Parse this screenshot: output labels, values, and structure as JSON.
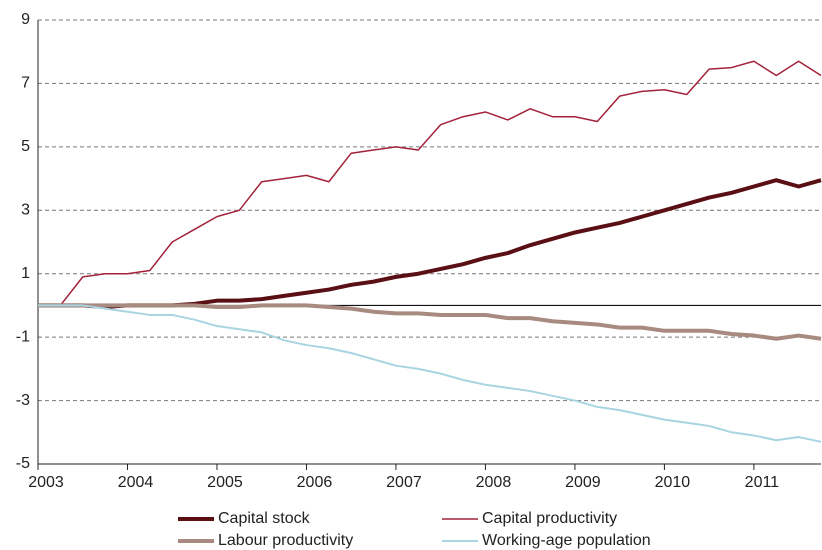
{
  "chart_data": {
    "type": "line",
    "x": [
      2003,
      2003.25,
      2003.5,
      2003.75,
      2004,
      2004.25,
      2004.5,
      2004.75,
      2005,
      2005.25,
      2005.5,
      2005.75,
      2006,
      2006.25,
      2006.5,
      2006.75,
      2007,
      2007.25,
      2007.5,
      2007.75,
      2008,
      2008.25,
      2008.5,
      2008.75,
      2009,
      2009.25,
      2009.5,
      2009.75,
      2010,
      2010.25,
      2010.5,
      2010.75,
      2011,
      2011.25,
      2011.5,
      2011.75
    ],
    "xlim": [
      2003,
      2011.75
    ],
    "xticks": [
      2003,
      2004,
      2005,
      2006,
      2007,
      2008,
      2009,
      2010,
      2011
    ],
    "ylim": [
      -5,
      9
    ],
    "yticks": [
      -5,
      -3,
      -1,
      1,
      3,
      5,
      7,
      9
    ],
    "grid": true,
    "legend": "bottom",
    "series": [
      {
        "name": "Capital stock",
        "color": "#5a0f14",
        "width": 4,
        "values": [
          0,
          0,
          0,
          -0.05,
          0,
          0,
          0,
          0.05,
          0.15,
          0.15,
          0.2,
          0.3,
          0.4,
          0.5,
          0.65,
          0.75,
          0.9,
          1.0,
          1.15,
          1.3,
          1.5,
          1.65,
          1.9,
          2.1,
          2.3,
          2.45,
          2.6,
          2.8,
          3.0,
          3.2,
          3.4,
          3.55,
          3.75,
          3.95,
          3.75,
          3.95
        ]
      },
      {
        "name": "Capital productivity",
        "color": "#a3223a",
        "width": 1.5,
        "values": [
          0,
          0,
          0.9,
          1.0,
          1.0,
          1.1,
          2.0,
          2.4,
          2.8,
          3.0,
          3.9,
          4.0,
          4.1,
          3.9,
          4.8,
          4.9,
          5.0,
          4.9,
          5.7,
          5.95,
          6.1,
          5.85,
          6.2,
          5.95,
          5.95,
          5.8,
          6.6,
          6.75,
          6.8,
          6.65,
          7.45,
          7.5,
          7.7,
          7.25,
          7.7,
          7.25
        ]
      },
      {
        "name": "Labour productivity",
        "color": "#a88a80",
        "width": 4,
        "values": [
          0,
          0,
          0,
          0,
          0,
          0,
          0,
          0,
          -0.05,
          -0.05,
          0,
          0,
          0,
          -0.05,
          -0.1,
          -0.2,
          -0.25,
          -0.25,
          -0.3,
          -0.3,
          -0.3,
          -0.4,
          -0.4,
          -0.5,
          -0.55,
          -0.6,
          -0.7,
          -0.7,
          -0.8,
          -0.8,
          -0.8,
          -0.9,
          -0.95,
          -1.05,
          -0.95,
          -1.05
        ]
      },
      {
        "name": "Working-age population",
        "color": "#a9d4e2",
        "width": 2,
        "values": [
          0,
          0,
          0,
          -0.1,
          -0.2,
          -0.3,
          -0.3,
          -0.45,
          -0.65,
          -0.75,
          -0.85,
          -1.1,
          -1.25,
          -1.35,
          -1.5,
          -1.7,
          -1.9,
          -2.0,
          -2.15,
          -2.35,
          -2.5,
          -2.6,
          -2.7,
          -2.85,
          -3.0,
          -3.2,
          -3.3,
          -3.45,
          -3.6,
          -3.7,
          -3.8,
          -4.0,
          -4.1,
          -4.25,
          -4.15,
          -4.3
        ]
      }
    ]
  }
}
